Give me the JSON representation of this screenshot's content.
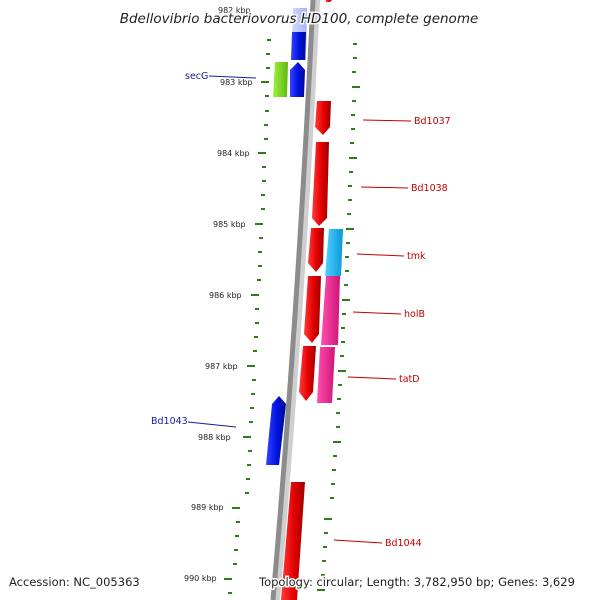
{
  "map": {
    "title": "Bdellovibrio bacteriovorus HD100, complete genome",
    "tick_labels": [
      "982 kbp",
      "983 kbp",
      "984 kbp",
      "985 kbp",
      "986 kbp",
      "987 kbp",
      "988 kbp",
      "989 kbp",
      "990 kbp"
    ],
    "gene_labels": {
      "secG": "secG",
      "bd1043": "Bd1043",
      "bd1037": "Bd1037",
      "bd1038": "Bd1038",
      "tmk": "tmk",
      "holB": "holB",
      "tatD": "tatD",
      "bd1044": "Bd1044"
    },
    "footer": {
      "accession": "Accession: NC_005363",
      "topology": "Topology: circular; Length: 3,782,950 bp; Genes: 3,629"
    },
    "colors": {
      "backbone": "#8c8c8c",
      "tick": "#2e7d1a",
      "forward_gene": "#0a14e6",
      "reverse_gene": "#e60c0c",
      "secG_gene": "#7ddc1e",
      "tmk_gene": "#14b4f0",
      "holB_tatD_gene": "#f0288c",
      "forward_label": "#1a1a9c",
      "reverse_label": "#c00000"
    }
  }
}
